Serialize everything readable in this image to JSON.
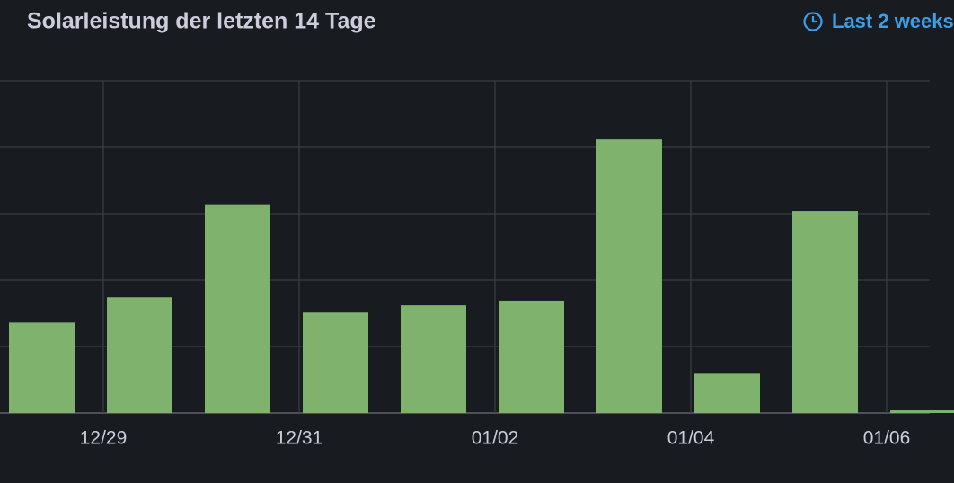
{
  "chart_data": {
    "type": "bar",
    "title": "Solarleistung der letzten 14 Tage",
    "time_range": "Last 2 weeks",
    "categories": [
      null,
      null,
      null,
      null,
      null,
      null,
      null,
      null,
      null,
      null
    ],
    "values": [
      1.36,
      1.74,
      3.14,
      1.51,
      1.62,
      1.69,
      4.12,
      0.59,
      3.04,
      0.04
    ],
    "color": "#7eb26d",
    "ylim": [
      0,
      5
    ],
    "ygrid": [
      0,
      1,
      2,
      3,
      4,
      5
    ],
    "xticks": [
      "12/29",
      "12/31",
      "01/02",
      "01/04",
      "01/06"
    ],
    "grid": true
  }
}
